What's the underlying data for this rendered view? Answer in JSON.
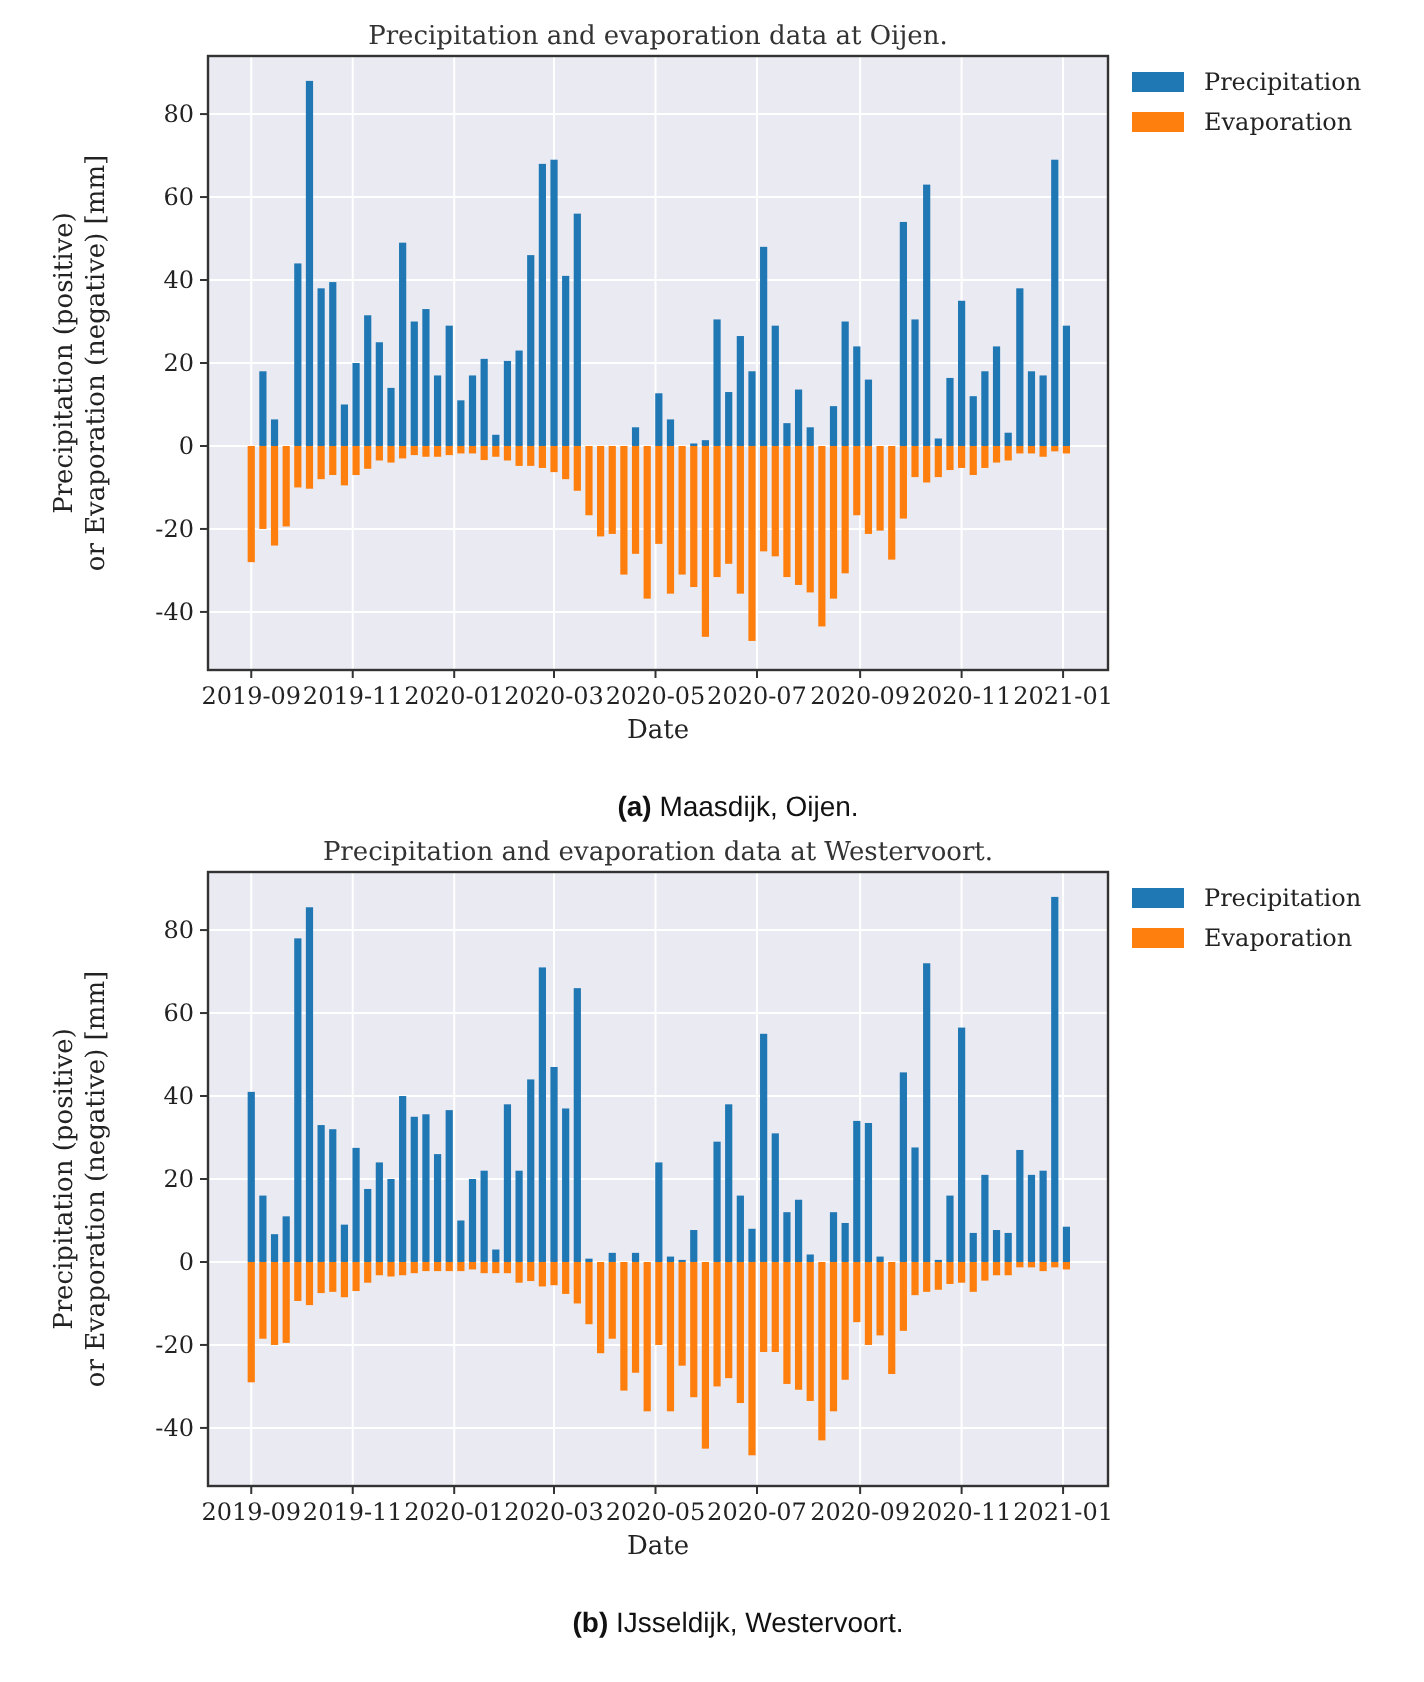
{
  "chart_data": [
    {
      "type": "bar",
      "title": "Precipitation and evaporation data at Oijen.",
      "xlabel": "Date",
      "ylabel": "Precipitation (positive)\nor Evaporation (negative) [mm]",
      "x": [
        "2019-09-01",
        "2019-09-08",
        "2019-09-15",
        "2019-09-22",
        "2019-09-29",
        "2019-10-06",
        "2019-10-13",
        "2019-10-20",
        "2019-10-27",
        "2019-11-03",
        "2019-11-10",
        "2019-11-17",
        "2019-11-24",
        "2019-12-01",
        "2019-12-08",
        "2019-12-15",
        "2019-12-22",
        "2019-12-29",
        "2020-01-05",
        "2020-01-12",
        "2020-01-19",
        "2020-01-26",
        "2020-02-02",
        "2020-02-09",
        "2020-02-16",
        "2020-02-23",
        "2020-03-01",
        "2020-03-08",
        "2020-03-15",
        "2020-03-22",
        "2020-03-29",
        "2020-04-05",
        "2020-04-12",
        "2020-04-19",
        "2020-04-26",
        "2020-05-03",
        "2020-05-10",
        "2020-05-17",
        "2020-05-24",
        "2020-05-31",
        "2020-06-07",
        "2020-06-14",
        "2020-06-21",
        "2020-06-28",
        "2020-07-05",
        "2020-07-12",
        "2020-07-19",
        "2020-07-26",
        "2020-08-02",
        "2020-08-09",
        "2020-08-16",
        "2020-08-23",
        "2020-08-30",
        "2020-09-06",
        "2020-09-13",
        "2020-09-20",
        "2020-09-27",
        "2020-10-04",
        "2020-10-11",
        "2020-10-18",
        "2020-10-25",
        "2020-11-01",
        "2020-11-08",
        "2020-11-15",
        "2020-11-22",
        "2020-11-29",
        "2020-12-06",
        "2020-12-13",
        "2020-12-20",
        "2020-12-27",
        "2021-01-03"
      ],
      "xlim": [
        "2019-08-06",
        "2021-01-28"
      ],
      "xticks": [
        "2019-09",
        "2019-11",
        "2020-01",
        "2020-03",
        "2020-05",
        "2020-07",
        "2020-09",
        "2020-11",
        "2021-01"
      ],
      "ylim": [
        -54,
        94
      ],
      "yticks": [
        -40,
        -20,
        0,
        20,
        40,
        60,
        80
      ],
      "grid": true,
      "legend": "top right",
      "stacked": true,
      "series": [
        {
          "name": "Precipitation",
          "color": "#1f77b4",
          "values": [
            0,
            18,
            6.4,
            0,
            44,
            88,
            38,
            39.5,
            10,
            20,
            31.5,
            25,
            14,
            49,
            30,
            33,
            17,
            29,
            11,
            17,
            21,
            2.7,
            20.5,
            23,
            46,
            68,
            69,
            41,
            56,
            0,
            0,
            0,
            0,
            4.5,
            0,
            12.7,
            6.4,
            0,
            0.6,
            1.4,
            30.5,
            13,
            26.5,
            18,
            48,
            29,
            5.5,
            13.6,
            4.5,
            0,
            9.6,
            30,
            24,
            16,
            0,
            0,
            54,
            30.5,
            63,
            1.8,
            16.4,
            35,
            12,
            18,
            24,
            3.2,
            38,
            18,
            17,
            69,
            29
          ]
        },
        {
          "name": "Evaporation",
          "color": "#ff7f0e",
          "values": [
            -28,
            -20,
            -24,
            -19.4,
            -10,
            -10.3,
            -8,
            -7,
            -9.5,
            -7,
            -5.5,
            -3.5,
            -4,
            -3,
            -2.2,
            -2.6,
            -2.6,
            -2.2,
            -1.8,
            -1.8,
            -3.4,
            -2.6,
            -3.5,
            -4.8,
            -4.8,
            -5.3,
            -6.3,
            -8,
            -10.8,
            -16.7,
            -21.8,
            -21.2,
            -31,
            -26,
            -36.8,
            -23.6,
            -35.6,
            -31,
            -34,
            -46,
            -31.6,
            -28.4,
            -35.6,
            -47,
            -25.4,
            -26.6,
            -31.6,
            -33.5,
            -35.3,
            -43.5,
            -36.8,
            -30.7,
            -16.7,
            -21.2,
            -20.4,
            -27.4,
            -17.5,
            -7.5,
            -8.8,
            -7.5,
            -5.8,
            -5.3,
            -7,
            -5.3,
            -4,
            -3.5,
            -1.8,
            -1.8,
            -2.6,
            -1.3,
            -1.8
          ]
        }
      ],
      "annotations": [
        "(a) Maasdijk, Oijen."
      ]
    },
    {
      "type": "bar",
      "title": "Precipitation and evaporation data at Westervoort.",
      "xlabel": "Date",
      "ylabel": "Precipitation (positive)\nor Evaporation (negative) [mm]",
      "x": [
        "2019-09-01",
        "2019-09-08",
        "2019-09-15",
        "2019-09-22",
        "2019-09-29",
        "2019-10-06",
        "2019-10-13",
        "2019-10-20",
        "2019-10-27",
        "2019-11-03",
        "2019-11-10",
        "2019-11-17",
        "2019-11-24",
        "2019-12-01",
        "2019-12-08",
        "2019-12-15",
        "2019-12-22",
        "2019-12-29",
        "2020-01-05",
        "2020-01-12",
        "2020-01-19",
        "2020-01-26",
        "2020-02-02",
        "2020-02-09",
        "2020-02-16",
        "2020-02-23",
        "2020-03-01",
        "2020-03-08",
        "2020-03-15",
        "2020-03-22",
        "2020-03-29",
        "2020-04-05",
        "2020-04-12",
        "2020-04-19",
        "2020-04-26",
        "2020-05-03",
        "2020-05-10",
        "2020-05-17",
        "2020-05-24",
        "2020-05-31",
        "2020-06-07",
        "2020-06-14",
        "2020-06-21",
        "2020-06-28",
        "2020-07-05",
        "2020-07-12",
        "2020-07-19",
        "2020-07-26",
        "2020-08-02",
        "2020-08-09",
        "2020-08-16",
        "2020-08-23",
        "2020-08-30",
        "2020-09-06",
        "2020-09-13",
        "2020-09-20",
        "2020-09-27",
        "2020-10-04",
        "2020-10-11",
        "2020-10-18",
        "2020-10-25",
        "2020-11-01",
        "2020-11-08",
        "2020-11-15",
        "2020-11-22",
        "2020-11-29",
        "2020-12-06",
        "2020-12-13",
        "2020-12-20",
        "2020-12-27",
        "2021-01-03"
      ],
      "xlim": [
        "2019-08-06",
        "2021-01-28"
      ],
      "xticks": [
        "2019-09",
        "2019-11",
        "2020-01",
        "2020-03",
        "2020-05",
        "2020-07",
        "2020-09",
        "2020-11",
        "2021-01"
      ],
      "ylim": [
        -54,
        94
      ],
      "yticks": [
        -40,
        -20,
        0,
        20,
        40,
        60,
        80
      ],
      "grid": true,
      "legend": "top right",
      "stacked": true,
      "series": [
        {
          "name": "Precipitation",
          "color": "#1f77b4",
          "values": [
            41,
            16,
            6.7,
            11,
            78,
            85.5,
            33,
            32,
            9,
            27.5,
            17.6,
            24,
            20,
            40,
            35,
            35.6,
            26,
            36.6,
            10,
            20,
            22,
            3,
            38,
            22,
            44,
            71,
            47,
            37,
            66,
            0.8,
            0,
            2.2,
            0,
            2.2,
            0,
            24,
            1.3,
            0.5,
            7.7,
            0,
            29,
            38,
            16,
            8,
            55,
            31,
            12,
            15,
            1.8,
            0,
            12,
            9.4,
            34,
            33.5,
            1.3,
            0,
            45.7,
            27.6,
            72,
            0.5,
            16,
            56.5,
            7,
            21,
            7.7,
            7,
            27,
            21,
            22,
            88,
            8.5
          ]
        },
        {
          "name": "Evaporation",
          "color": "#ff7f0e",
          "values": [
            -29,
            -18.5,
            -20,
            -19.5,
            -9.4,
            -10.4,
            -7.5,
            -7.2,
            -8.5,
            -7,
            -5,
            -3.2,
            -3.5,
            -3.2,
            -2.7,
            -2.2,
            -2.2,
            -2.2,
            -2.2,
            -1.8,
            -2.7,
            -2.7,
            -2.7,
            -5,
            -4.6,
            -5.9,
            -5.6,
            -7.7,
            -10,
            -15,
            -22,
            -18.5,
            -31,
            -26.7,
            -36,
            -20,
            -36,
            -25,
            -32.6,
            -45,
            -30,
            -28,
            -34,
            -46.6,
            -21.7,
            -21.7,
            -29.4,
            -30.8,
            -33.5,
            -43,
            -36,
            -28.4,
            -14.5,
            -20,
            -17.7,
            -27,
            -16.6,
            -8,
            -7.2,
            -6.7,
            -5.3,
            -5,
            -7.2,
            -4.5,
            -3.2,
            -3.2,
            -1.3,
            -1.3,
            -2.2,
            -1.3,
            -1.8
          ]
        }
      ],
      "annotations": [
        "(b) IJsseldijk, Westervoort."
      ]
    }
  ]
}
